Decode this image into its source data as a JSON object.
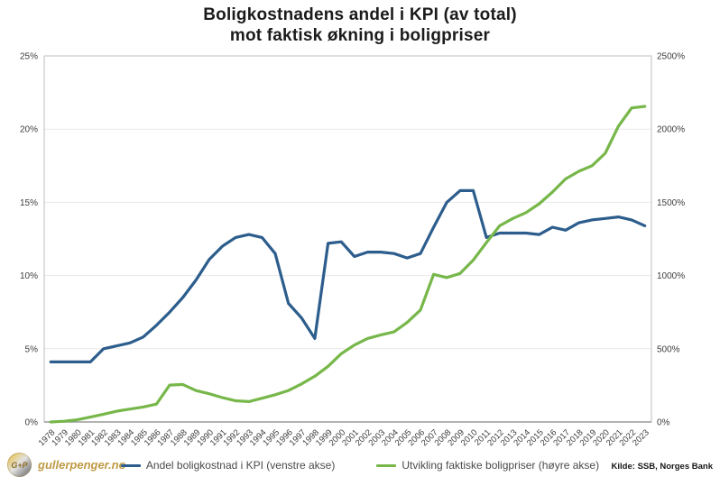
{
  "title": {
    "line1": "Boligkostnadens andel i KPI (av total)",
    "line2": "mot faktisk økning i boligpriser"
  },
  "branding": {
    "monogram": "G+P",
    "site": "gullerpenger.no"
  },
  "source_label": "Kilde: SSB, Norges Bank",
  "chart_data": {
    "type": "line",
    "title": "Boligkostnadens andel i KPI (av total) mot faktisk økning i boligpriser",
    "grid": true,
    "legend_position": "bottom",
    "categories": [
      "1978",
      "1979",
      "1980",
      "1981",
      "1982",
      "1983",
      "1984",
      "1985",
      "1986",
      "1987",
      "1988",
      "1989",
      "1990",
      "1991",
      "1992",
      "1993",
      "1994",
      "1995",
      "1996",
      "1997",
      "1998",
      "1999",
      "2000",
      "2001",
      "2002",
      "2003",
      "2004",
      "2005",
      "2006",
      "2007",
      "2008",
      "2009",
      "2010",
      "2011",
      "2012",
      "2013",
      "2014",
      "2015",
      "2016",
      "2017",
      "2018",
      "2019",
      "2020",
      "2021",
      "2022",
      "2023"
    ],
    "left_axis": {
      "ticks": [
        "0%",
        "5%",
        "10%",
        "15%",
        "20%",
        "25%"
      ],
      "min": 0,
      "max": 25
    },
    "right_axis": {
      "ticks": [
        "0%",
        "500%",
        "1000%",
        "1500%",
        "2000%",
        "2500%"
      ],
      "min": 0,
      "max": 2500
    },
    "series": [
      {
        "name": "Andel boligkostnad i KPI (venstre akse)",
        "axis": "left",
        "color": "#2c5d8c",
        "values": [
          4.1,
          4.1,
          4.1,
          4.1,
          5.0,
          5.2,
          5.4,
          5.8,
          6.6,
          7.5,
          8.5,
          9.7,
          11.1,
          12.0,
          12.6,
          12.8,
          12.6,
          11.5,
          8.1,
          7.1,
          5.7,
          12.2,
          12.3,
          11.3,
          11.6,
          11.6,
          11.5,
          11.2,
          11.5,
          13.3,
          15.0,
          15.8,
          15.8,
          12.6,
          12.9,
          12.9,
          12.9,
          12.8,
          13.3,
          13.1,
          13.6,
          13.8,
          13.9,
          14.0,
          13.8,
          13.4
        ]
      },
      {
        "name": "Utvikling faktiske boligpriser (høyre akse)",
        "axis": "right",
        "color": "#77b74a",
        "values": [
          0,
          5,
          15,
          33,
          53,
          74,
          88,
          102,
          122,
          252,
          256,
          214,
          193,
          166,
          145,
          139,
          162,
          186,
          215,
          260,
          312,
          380,
          466,
          525,
          570,
          595,
          615,
          680,
          765,
          1008,
          986,
          1014,
          1105,
          1225,
          1340,
          1390,
          1430,
          1490,
          1570,
          1660,
          1712,
          1750,
          1835,
          2020,
          2145,
          2155
        ]
      }
    ]
  }
}
